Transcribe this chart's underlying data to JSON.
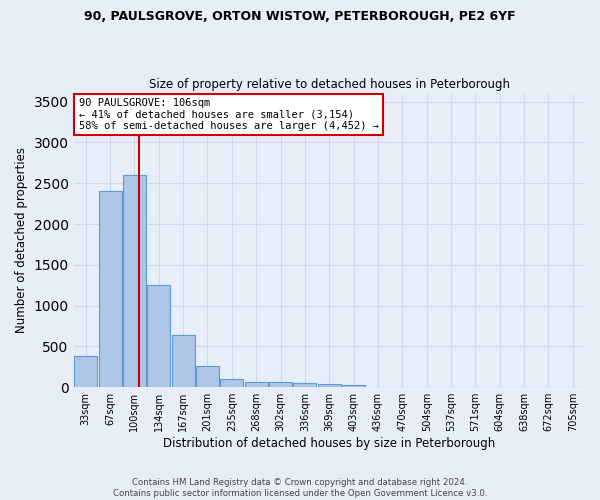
{
  "title1": "90, PAULSGROVE, ORTON WISTOW, PETERBOROUGH, PE2 6YF",
  "title2": "Size of property relative to detached houses in Peterborough",
  "xlabel": "Distribution of detached houses by size in Peterborough",
  "ylabel": "Number of detached properties",
  "bin_labels": [
    "33sqm",
    "67sqm",
    "100sqm",
    "134sqm",
    "167sqm",
    "201sqm",
    "235sqm",
    "268sqm",
    "302sqm",
    "336sqm",
    "369sqm",
    "403sqm",
    "436sqm",
    "470sqm",
    "504sqm",
    "537sqm",
    "571sqm",
    "604sqm",
    "638sqm",
    "672sqm",
    "705sqm"
  ],
  "bar_values": [
    380,
    2400,
    2600,
    1250,
    640,
    260,
    100,
    65,
    65,
    55,
    40,
    30,
    0,
    0,
    0,
    0,
    0,
    0,
    0,
    0,
    0
  ],
  "bar_color": "#aec6e8",
  "bar_edge_color": "#5b9bd5",
  "grid_color": "#d0d8e8",
  "background_color": "#e8eef8",
  "vline_color": "#cc0000",
  "annotation_text": "90 PAULSGROVE: 106sqm\n← 41% of detached houses are smaller (3,154)\n58% of semi-detached houses are larger (4,452) →",
  "annotation_box_color": "#ffffff",
  "annotation_box_edge": "#cc0000",
  "ylim": [
    0,
    3600
  ],
  "yticks": [
    0,
    500,
    1000,
    1500,
    2000,
    2500,
    3000,
    3500
  ],
  "footer1": "Contains HM Land Registry data © Crown copyright and database right 2024.",
  "footer2": "Contains public sector information licensed under the Open Government Licence v3.0."
}
